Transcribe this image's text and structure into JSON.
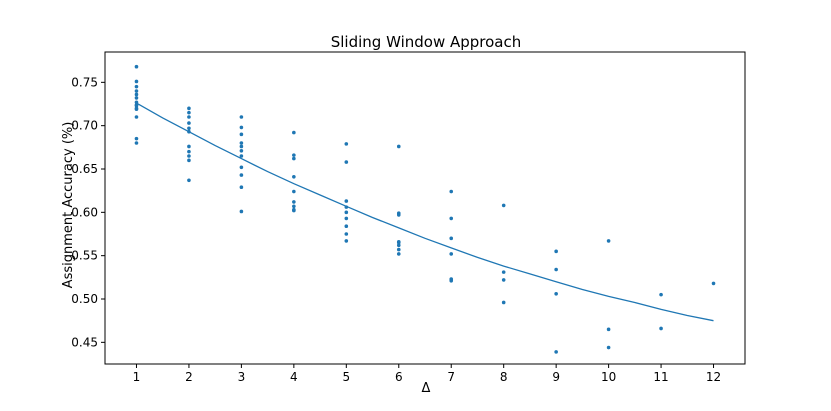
{
  "chart_data": {
    "type": "scatter",
    "title": "Sliding Window Approach",
    "xlabel": "Δ",
    "ylabel": "Assignment Accuracy (%)",
    "xlim": [
      0.4,
      12.6
    ],
    "ylim": [
      0.425,
      0.785
    ],
    "xticks": [
      1,
      2,
      3,
      4,
      5,
      6,
      7,
      8,
      9,
      10,
      11,
      12
    ],
    "xtick_labels": [
      "1",
      "2",
      "3",
      "4",
      "5",
      "6",
      "7",
      "8",
      "9",
      "10",
      "11",
      "12"
    ],
    "yticks": [
      0.45,
      0.5,
      0.55,
      0.6,
      0.65,
      0.7,
      0.75
    ],
    "ytick_labels": [
      "0.45",
      "0.50",
      "0.55",
      "0.60",
      "0.65",
      "0.70",
      "0.75"
    ],
    "grid": false,
    "color": "#1f77b4",
    "series": [
      {
        "kind": "points",
        "x": [
          1,
          1,
          1,
          1,
          1,
          1,
          1,
          1,
          1,
          1,
          1,
          1,
          1,
          1,
          2,
          2,
          2,
          2,
          2,
          2,
          2,
          2,
          2,
          2,
          2,
          3,
          3,
          3,
          3,
          3,
          3,
          3,
          3,
          3,
          3,
          3,
          4,
          4,
          4,
          4,
          4,
          4,
          4,
          4,
          4,
          5,
          5,
          5,
          5,
          5,
          5,
          5,
          5,
          5,
          6,
          6,
          6,
          6,
          6,
          6,
          6,
          6,
          7,
          7,
          7,
          7,
          7,
          7,
          8,
          8,
          8,
          8,
          9,
          9,
          9,
          9,
          10,
          10,
          10,
          11,
          11,
          12
        ],
        "y": [
          0.768,
          0.751,
          0.745,
          0.74,
          0.736,
          0.732,
          0.727,
          0.723,
          0.72,
          0.719,
          0.71,
          0.685,
          0.68,
          0.724,
          0.72,
          0.715,
          0.71,
          0.703,
          0.697,
          0.693,
          0.676,
          0.67,
          0.665,
          0.66,
          0.637,
          0.71,
          0.698,
          0.69,
          0.68,
          0.676,
          0.671,
          0.665,
          0.652,
          0.643,
          0.629,
          0.601,
          0.692,
          0.666,
          0.662,
          0.641,
          0.624,
          0.612,
          0.607,
          0.603,
          0.602,
          0.679,
          0.658,
          0.613,
          0.606,
          0.6,
          0.593,
          0.584,
          0.575,
          0.567,
          0.676,
          0.599,
          0.597,
          0.566,
          0.562,
          0.557,
          0.552,
          0.565,
          0.624,
          0.593,
          0.57,
          0.552,
          0.523,
          0.521,
          0.608,
          0.531,
          0.522,
          0.496,
          0.555,
          0.534,
          0.506,
          0.439,
          0.567,
          0.465,
          0.444,
          0.505,
          0.466,
          0.518
        ]
      },
      {
        "kind": "line",
        "x": [
          1,
          1.5,
          2,
          2.5,
          3,
          3.5,
          4,
          4.5,
          5,
          5.5,
          6,
          6.5,
          7,
          7.5,
          8,
          8.5,
          9,
          9.5,
          10,
          10.5,
          11,
          11.5,
          12
        ],
        "y": [
          0.726,
          0.709,
          0.693,
          0.677,
          0.662,
          0.647,
          0.633,
          0.62,
          0.607,
          0.594,
          0.582,
          0.57,
          0.559,
          0.548,
          0.538,
          0.529,
          0.52,
          0.511,
          0.503,
          0.496,
          0.488,
          0.481,
          0.475
        ]
      }
    ]
  }
}
